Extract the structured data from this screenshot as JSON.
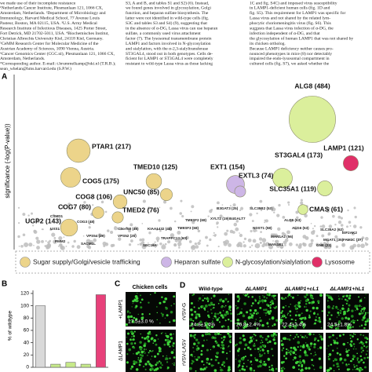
{
  "text_columns": [
    [
      "we made use of their incomplete resistance",
      "¹Netherlands Cancer Institute, Plesmanlaan 121, 1066 CX,",
      "Amsterdam, Netherlands. ²Department of Microbiology and",
      "Immunology, Harvard Medical School, 77 Avenue Louis",
      "Pasteur, Boston, MA 02115, USA. ³U.S. Army Medical",
      "Research Institute of Infectious Diseases, 1425 Porter Street,",
      "Fort Detrick, MD 21702-5011, USA. ⁴Biochemisches Institut,",
      "Christian Albrechts University Kiel, 24118 Kiel, Germany.",
      "⁵CeMM Research Center for Molecular Medicine of the",
      "Austrian Academy of Sciences, 1090 Vienna, Austria.",
      "⁶Cancer Genomics Center (CGC.nl), Plesmanlaan 121, 1066 CX,",
      "Amsterdam, Netherlands.",
      "*Corresponding author. E-mail: t.brummelkamp@nki.nl (T.R.B.);",
      "sean_whelan@hms.harvard.edu (S.P.W.)"
    ],
    [
      "S3, A and B, and tables S1 and S2) (6). Instead,",
      "we found genes involved in glycosylation, Golgi",
      "function, and heparan sulfate biosynthesis. The",
      "latter were not identified in wild-type cells (fig.",
      "S3C and tables S3 and S4) (9), suggesting that",
      "in the absence of α-DG, Lassa virus can use heparan",
      "sulfate, a commonly used virus attachment",
      "factor (7). The lysosomal transmembrane protein",
      "LAMP1 and factors involved in N-glycosylation",
      "and sialylation, with the α-2,3-sialyltransferase",
      "ST3GAL4, stood out in both genotypes. Cells de-",
      "ficient for LAMP1 or ST3GAL4 were completely",
      "resistant to wild-type Lassa virus as those lacking"
    ],
    [
      "1C and fig. S4C) and imposed virus susceptibility",
      "in LAMP1-deficient human cells (fig. 1D and",
      "fig. S5). This requirement for LAMP1 was specific for",
      "Lassa virus and not shared by the related lym-",
      "phocytic choriomeningitis virus (fig. S6). This",
      "suggests that Lassa virus infection of α-DG, the",
      "infection independent of α-DG, and that",
      "the glycosylation of human LAMP1 that was not shared by",
      "its chicken ortholog.",
      "Because LAMP1 deficiency neither causes pro-",
      "nounced phenotypes in mice (8) nor detectably",
      "impaired the endo-lysosomal compartment in",
      "cultured cells (fig. S7), we asked whether the"
    ]
  ],
  "panel_a": {
    "label": "A",
    "y_label": "significance (-log(P-value))",
    "hits": [
      {
        "label": "ALG8 (484)",
        "count": 484,
        "group": 2
      },
      {
        "label": "ST3GAL4 (173)",
        "count": 173,
        "group": 2
      },
      {
        "label": "LAMP1 (121)",
        "count": 121,
        "group": 3
      },
      {
        "label": "SLC35A1 (119)",
        "count": 119,
        "group": 2
      },
      {
        "label": "CMAS (61)",
        "count": 61,
        "group": 2
      },
      {
        "label": "PTAR1 (217)",
        "count": 217,
        "group": 0
      },
      {
        "label": "COG5 (175)",
        "count": 175,
        "group": 0
      },
      {
        "label": "TMED10 (125)",
        "count": 125,
        "group": 0
      },
      {
        "label": "UNC50 (85)",
        "count": 85,
        "group": 0
      },
      {
        "label": "EXT1 (154)",
        "count": 154,
        "group": 1
      },
      {
        "label": "EXTL3 (74)",
        "count": 74,
        "group": 1
      },
      {
        "label": "COG8 (106)",
        "count": 106,
        "group": 0
      },
      {
        "label": "COG7 (80)",
        "count": 80,
        "group": 0
      },
      {
        "label": "TMED2 (76)",
        "count": 76,
        "group": 0
      },
      {
        "label": "UGP2 (143)",
        "count": 143,
        "group": 0
      }
    ],
    "minor_labels": [
      "ALG5 (63)",
      "ALG6 (53)",
      "SLC35A2 (62)",
      "TM9SF2 (68)",
      "TM9SF3 (68)",
      "KIAA1432 (44)",
      "C3orf58 (45)",
      "COG3 (48)",
      "TRAPPC13 (60)",
      "B3GAT3 (25)",
      "SLC35B2 (53)",
      "NDST1 (58)",
      "XYLT2 (19)",
      "MAN1A2 (56)",
      "MGAT1 (35)",
      "EIF2AK2",
      "FAM3C (27)",
      "GNE (22)",
      "MAN1B1",
      "UXS1",
      "CSMD1",
      "VPS54 (39)",
      "VPS52 (25)",
      "SACM1L",
      "PMM2",
      "SEC16A",
      "B4GALT7"
    ],
    "legend": [
      {
        "label": "Sugar supply/Golgi/vesicle trafficking",
        "color": "#ecd48a"
      },
      {
        "label": "Heparan sulfate",
        "color": "#cdb6e6"
      },
      {
        "label": "N-glycosylation/sialylation",
        "color": "#dbef9c"
      },
      {
        "label": "Lysosome",
        "color": "#e03068"
      }
    ]
  },
  "chart_data": {
    "type": "bar",
    "panel_label": "B",
    "y_label": "% of wildtype",
    "categories": [
      null,
      null,
      null,
      null,
      null
    ],
    "values": [
      100,
      5,
      8,
      5,
      118
    ],
    "colors": [
      "#d9d9d9",
      "#c7ea8a",
      "#c7ea8a",
      "#c7ea8a",
      "#e8407a"
    ],
    "ylim": [
      0,
      125
    ],
    "yticks": [
      0,
      20,
      40,
      60,
      80,
      100,
      120
    ]
  },
  "panel_c": {
    "label": "C",
    "title": "Chicken cells",
    "rows": [
      "+LAMP1",
      "ΔLAMP1"
    ],
    "value": "17.5±3.0 %"
  },
  "panel_d": {
    "label": "D",
    "columns": [
      "Wild-type",
      "ΔLAMP1",
      "ΔLAMP1+cL1",
      "ΔLAMP1+hL1"
    ],
    "rows": [
      "rVSV-G",
      "rVSV-LASV"
    ],
    "values": [
      "24.8±1.4%",
      "26.8±2.4%",
      "22.4±3.4%",
      "24.5±1.8%"
    ]
  }
}
